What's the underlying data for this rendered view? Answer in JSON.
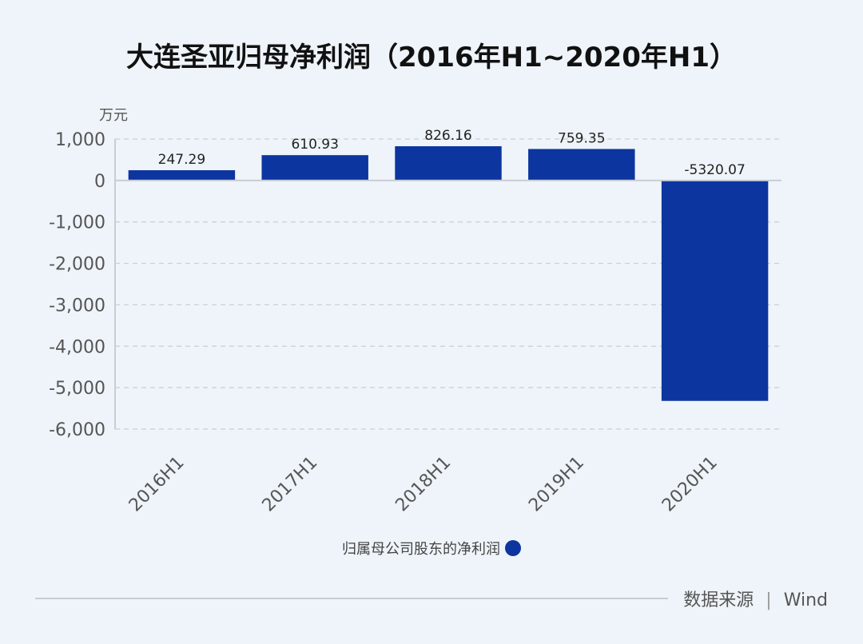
{
  "title": "大连圣亚归母净利润（2016年H1~2020年H1）",
  "unit_label": "万元",
  "legend_label": "归属母公司股东的净利润",
  "source": {
    "label": "数据来源",
    "separator": "|",
    "value": "Wind"
  },
  "colors": {
    "bar": "#0d35a0",
    "background": "#eef4f9"
  },
  "chart_data": {
    "type": "bar",
    "title": "大连圣亚归母净利润（2016年H1~2020年H1）",
    "ylabel": "万元",
    "categories": [
      "2016H1",
      "2017H1",
      "2018H1",
      "2019H1",
      "2020H1"
    ],
    "series": [
      {
        "name": "归属母公司股东的净利润",
        "values": [
          247.29,
          610.93,
          826.16,
          759.35,
          -5320.07
        ]
      }
    ],
    "data_labels": [
      "247.29",
      "610.93",
      "826.16",
      "759.35",
      "-5320.07"
    ],
    "ylim": [
      -6000,
      1000
    ],
    "yticks": [
      1000,
      0,
      -1000,
      -2000,
      -3000,
      -4000,
      -5000,
      -6000
    ],
    "ytick_labels": [
      "1,000",
      "0",
      "-1,000",
      "-2,000",
      "-3,000",
      "-4,000",
      "-5,000",
      "-6,000"
    ],
    "grid": true,
    "legend_position": "bottom"
  }
}
